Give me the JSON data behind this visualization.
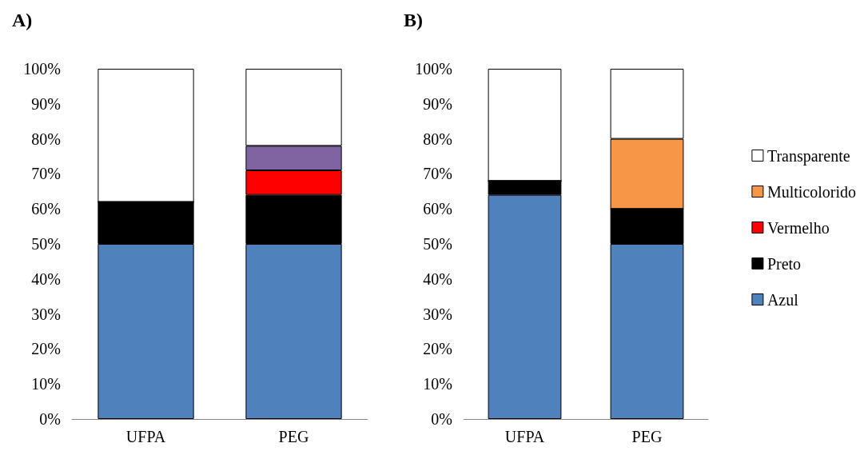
{
  "chart_data": [
    {
      "type": "bar",
      "title": "A)",
      "categories": [
        "UFPA",
        "PEG"
      ],
      "stacked": true,
      "legend": false,
      "series": [
        {
          "color": "#4f81bd",
          "values": [
            50,
            50
          ]
        },
        {
          "color": "#000000",
          "values": [
            12,
            14
          ]
        },
        {
          "color": "#ff0000",
          "values": [
            0,
            7
          ]
        },
        {
          "color": "#8064a2",
          "values": [
            0,
            7
          ]
        },
        {
          "color": "#ffffff",
          "values": [
            38,
            22
          ]
        }
      ],
      "ylim": [
        0,
        100
      ],
      "yticks": [
        {
          "value": 0,
          "label": "0%"
        },
        {
          "value": 10,
          "label": "10%"
        },
        {
          "value": 20,
          "label": "20%"
        },
        {
          "value": 30,
          "label": "30%"
        },
        {
          "value": 40,
          "label": "40%"
        },
        {
          "value": 50,
          "label": "50%"
        },
        {
          "value": 60,
          "label": "60%"
        },
        {
          "value": 70,
          "label": "70%"
        },
        {
          "value": 80,
          "label": "80%"
        },
        {
          "value": 90,
          "label": "90%"
        },
        {
          "value": 100,
          "label": "100%"
        }
      ]
    },
    {
      "type": "bar",
      "title": "B)",
      "categories": [
        "UFPA",
        "PEG"
      ],
      "stacked": true,
      "legend": "right",
      "series": [
        {
          "name": "Azul",
          "color": "#4f81bd",
          "values": [
            64,
            50
          ]
        },
        {
          "name": "Preto",
          "color": "#000000",
          "values": [
            4,
            10
          ]
        },
        {
          "name": "Vermelho",
          "color": "#ff0000",
          "values": [
            0,
            0
          ]
        },
        {
          "name": "Multicolorido",
          "color": "#f79646",
          "values": [
            0,
            20
          ]
        },
        {
          "name": "Transparente",
          "color": "#ffffff",
          "values": [
            32,
            20
          ]
        }
      ],
      "ylim": [
        0,
        100
      ],
      "yticks": [
        {
          "value": 0,
          "label": "0%"
        },
        {
          "value": 10,
          "label": "10%"
        },
        {
          "value": 20,
          "label": "20%"
        },
        {
          "value": 30,
          "label": "30%"
        },
        {
          "value": 40,
          "label": "40%"
        },
        {
          "value": 50,
          "label": "50%"
        },
        {
          "value": 60,
          "label": "60%"
        },
        {
          "value": 70,
          "label": "70%"
        },
        {
          "value": 80,
          "label": "80%"
        },
        {
          "value": 90,
          "label": "90%"
        },
        {
          "value": 100,
          "label": "100%"
        }
      ]
    }
  ]
}
